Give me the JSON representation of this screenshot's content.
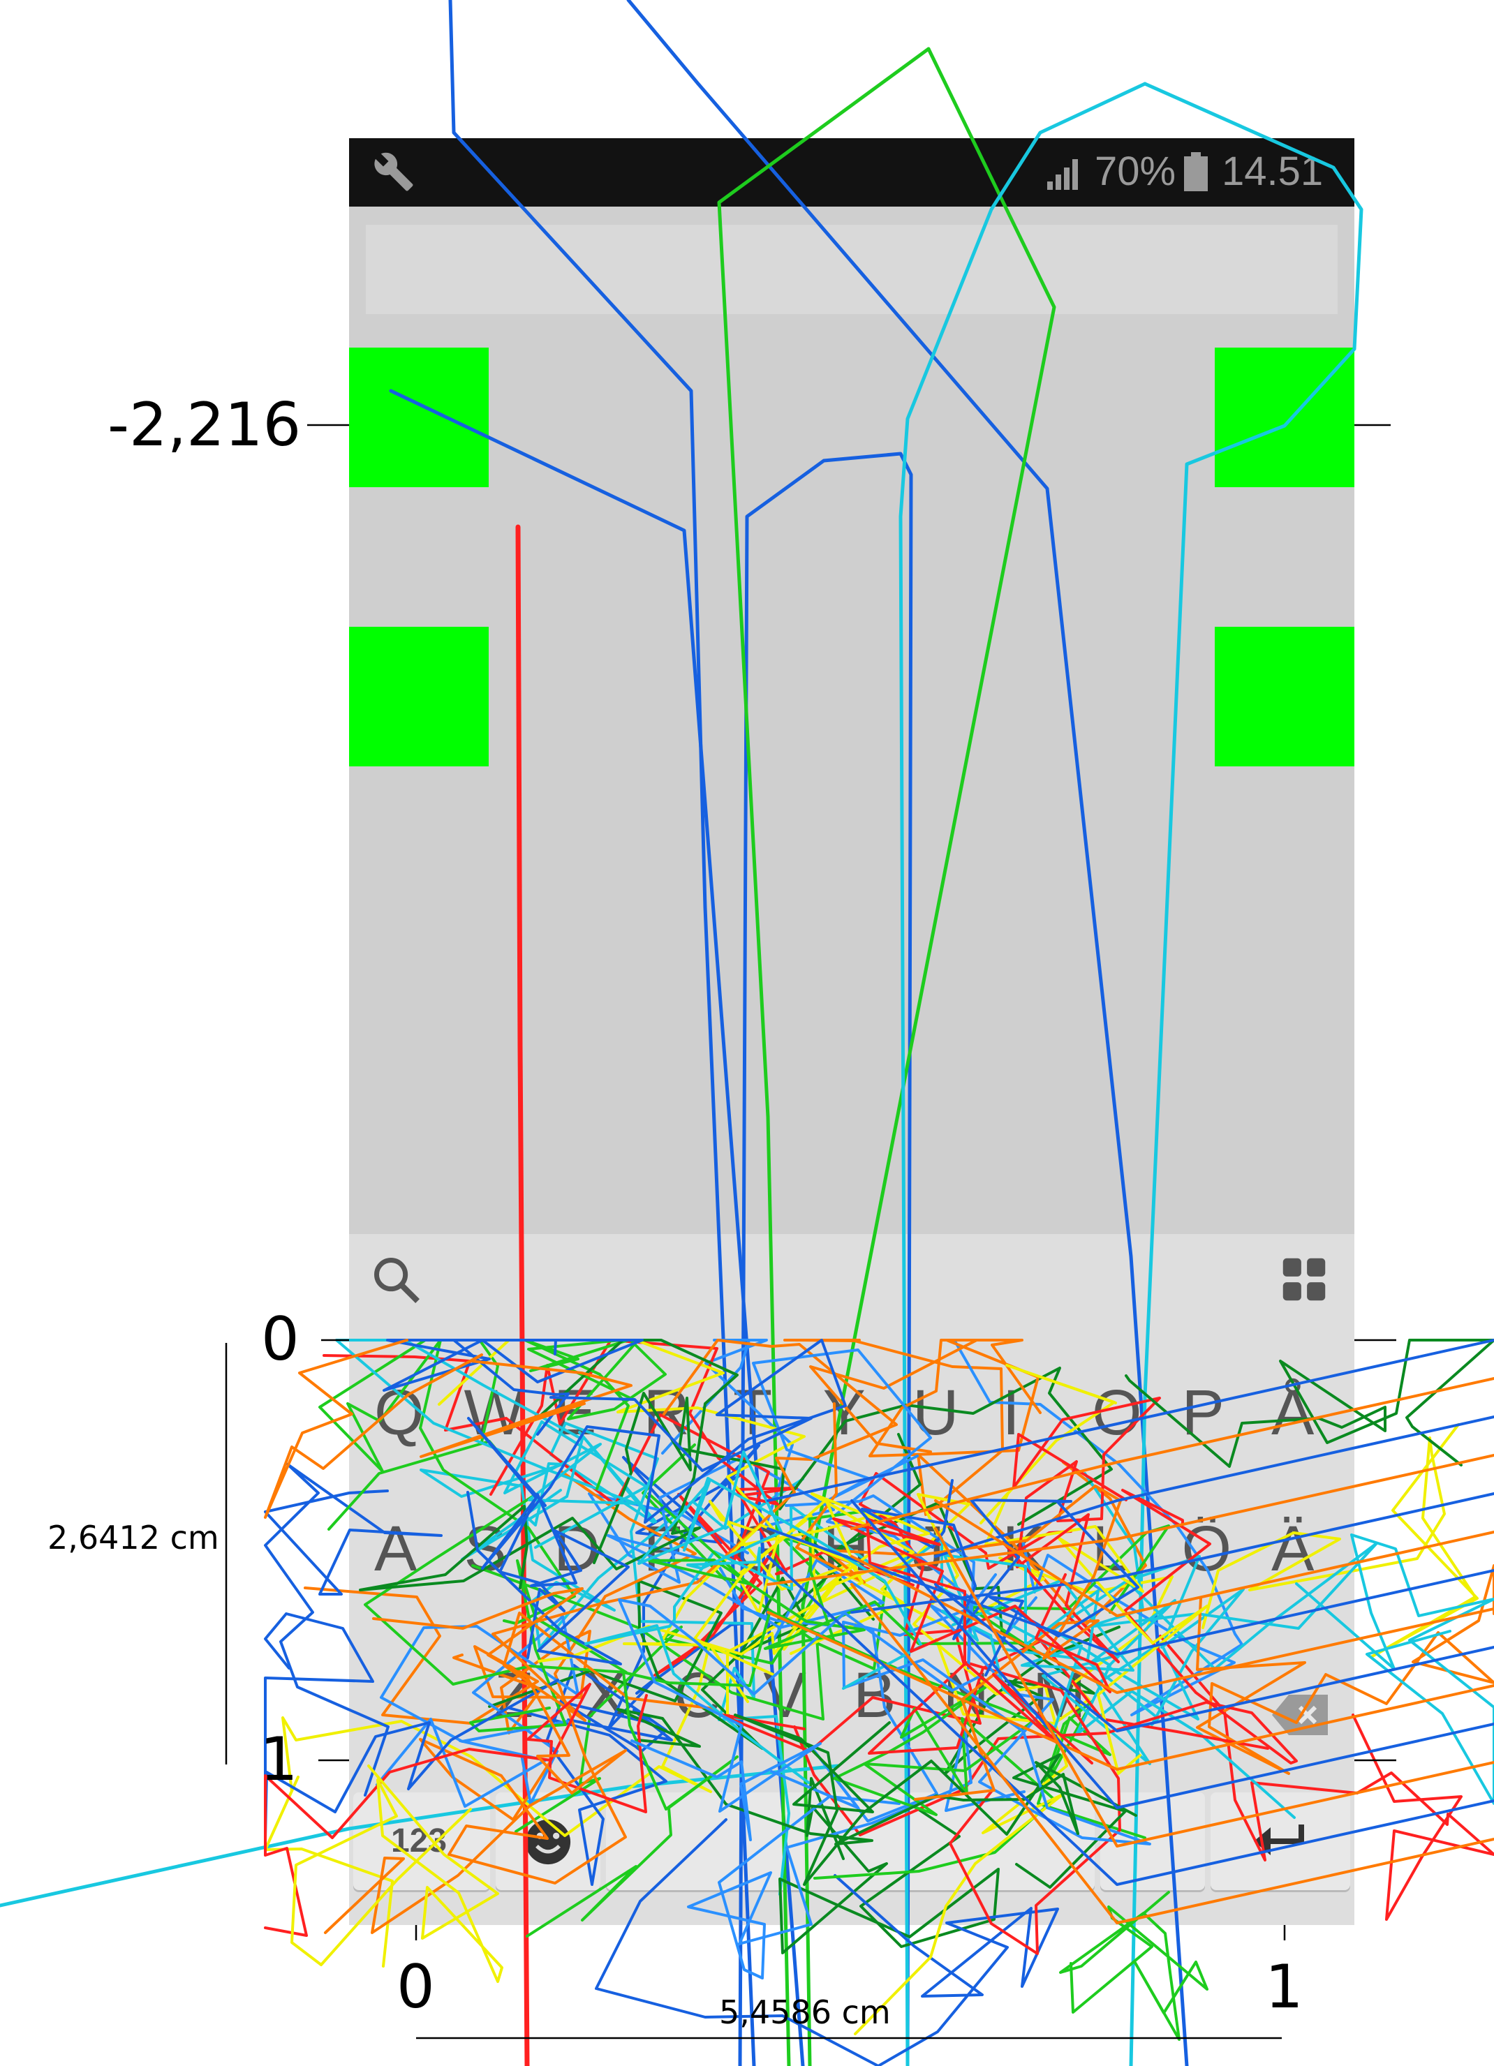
{
  "statusbar": {
    "wrench_icon": "wrench-icon",
    "signal_icon": "signal-bars-icon",
    "battery_percent": "70%",
    "battery_icon": "battery-icon",
    "time": "14.51"
  },
  "keyboard": {
    "search_icon": "search-icon",
    "apps_icon": "grid-icon",
    "row1": [
      "Q",
      "W",
      "E",
      "R",
      "T",
      "Y",
      "U",
      "I",
      "O",
      "P",
      "Å"
    ],
    "row2": [
      "A",
      "S",
      "D",
      "F",
      "G",
      "H",
      "J",
      "K",
      "L",
      "Ö",
      "Ä"
    ],
    "row3": [
      "Z",
      "X",
      "C",
      "V",
      "B",
      "N",
      "M"
    ],
    "numbers_key": "123",
    "emoji_icon": "smiley-icon",
    "backspace_icon": "backspace-icon",
    "enter_icon": "enter-icon"
  },
  "measurements": {
    "top_value": "-2,216",
    "y_zero": "0",
    "y_one": "1",
    "height_label": "2,6412 cm",
    "x_zero": "0",
    "x_one": "1",
    "width_label": "5,4586 cm"
  },
  "colors": {
    "marker_green": "#00ff00",
    "trace_red": "#ff2020",
    "trace_green": "#1ecc1e",
    "trace_blue": "#1660e0",
    "trace_cyan": "#18c8e0",
    "trace_orange": "#ff7a00",
    "trace_yellow": "#f0f000"
  }
}
